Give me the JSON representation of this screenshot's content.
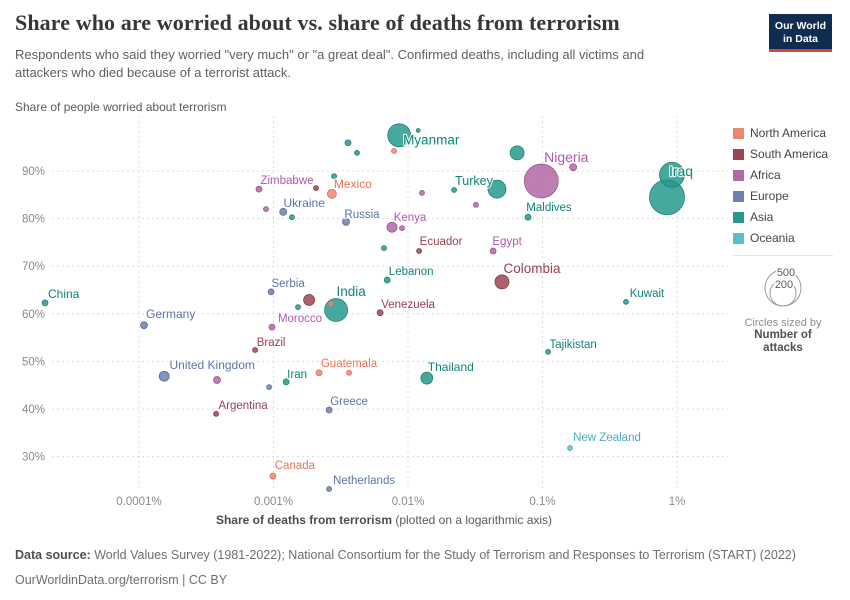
{
  "header": {
    "title": "Share who are worried about vs. share of deaths from terrorism",
    "subtitle_line1": "Respondents who said they worried \"very much\" or \"a great deal\". Confirmed deaths, including all victims and",
    "subtitle_line2": "attackers who died because of a terrorist attack.",
    "logo": {
      "line1": "Our World",
      "line2": "in Data"
    }
  },
  "chart_data": {
    "type": "scatter",
    "x_scale": "log",
    "y_axis_title": "Share of people worried about terrorism",
    "x_axis_title_bold": "Share of deaths from terrorism",
    "x_axis_title_note": " (plotted on a logarithmic axis)",
    "y_ticks": [
      {
        "label": "90%",
        "value": 90
      },
      {
        "label": "80%",
        "value": 80
      },
      {
        "label": "70%",
        "value": 70
      },
      {
        "label": "60%",
        "value": 60
      },
      {
        "label": "50%",
        "value": 50
      },
      {
        "label": "40%",
        "value": 40
      },
      {
        "label": "30%",
        "value": 30
      }
    ],
    "x_ticks": [
      {
        "label": "0.0001%",
        "value": 0.0001
      },
      {
        "label": "0.001%",
        "value": 0.001
      },
      {
        "label": "0.01%",
        "value": 0.01
      },
      {
        "label": "0.1%",
        "value": 0.1
      },
      {
        "label": "1%",
        "value": 1
      }
    ],
    "points": [
      {
        "label": "China",
        "continent": "Asia",
        "worried": 62.3,
        "deaths": 2e-05,
        "r": 3,
        "lx": 3,
        "ly": -5,
        "anchor": "start",
        "fs": 12
      },
      {
        "label": "Germany",
        "continent": "Europe",
        "worried": 57.6,
        "deaths": 0.000109,
        "r": 3.5,
        "lx": 2,
        "ly": -7,
        "anchor": "start",
        "fs": 12
      },
      {
        "label": "United Kingdom",
        "continent": "Europe",
        "worried": 46.9,
        "deaths": 0.000154,
        "r": 5,
        "lx": 48,
        "ly": -7,
        "anchor": "middle",
        "fs": 12
      },
      {
        "label": "Zimbabwe",
        "continent": "Africa",
        "worried": 86.2,
        "deaths": 0.00078,
        "r": 3,
        "lx": 28,
        "ly": -5,
        "anchor": "middle",
        "fs": 11.5
      },
      {
        "label": "Ukraine",
        "continent": "Europe",
        "worried": 81.4,
        "deaths": 0.00118,
        "r": 3.5,
        "lx": 21,
        "ly": -5,
        "anchor": "middle",
        "fs": 12
      },
      {
        "label": "Mexico",
        "continent": "North America",
        "worried": 85.2,
        "deaths": 0.00272,
        "r": 4.5,
        "lx": 21,
        "ly": -6,
        "anchor": "middle",
        "fs": 12
      },
      {
        "label": "Russia",
        "continent": "Europe",
        "worried": 79.3,
        "deaths": 0.00346,
        "r": 3.5,
        "lx": 16,
        "ly": -4,
        "anchor": "middle",
        "fs": 11.5
      },
      {
        "label": "Kenya",
        "continent": "Africa",
        "worried": 78.2,
        "deaths": 0.0076,
        "r": 5,
        "lx": 18,
        "ly": -6,
        "anchor": "middle",
        "fs": 11.5
      },
      {
        "label": "Myanmar",
        "continent": "Asia",
        "worried": 97.5,
        "deaths": 0.0086,
        "r": 11.5,
        "lx": 32,
        "ly": 9,
        "anchor": "middle",
        "fs": 13.5
      },
      {
        "label": "Turkey",
        "continent": "Asia",
        "worried": 86.2,
        "deaths": 0.0459,
        "r": 9,
        "lx": -23,
        "ly": -4,
        "anchor": "middle",
        "fs": 12.5
      },
      {
        "label": "Nigeria",
        "continent": "Africa",
        "worried": 87.9,
        "deaths": 0.098,
        "r": 17,
        "lx": 25,
        "ly": -19,
        "anchor": "middle",
        "fs": 14
      },
      {
        "label": "Maldives",
        "continent": "Asia",
        "worried": 80.3,
        "deaths": 0.078,
        "r": 3,
        "lx": 21,
        "ly": -6,
        "anchor": "middle",
        "fs": 11.5
      },
      {
        "label": "Iraq",
        "continent": "Asia",
        "worried": 84.5,
        "deaths": 0.843,
        "r": 17.5,
        "lx": 14,
        "ly": -21,
        "anchor": "middle",
        "fs": 14
      },
      {
        "label": "Egypt",
        "continent": "Africa",
        "worried": 73.2,
        "deaths": 0.0429,
        "r": 3,
        "lx": 14,
        "ly": -6,
        "anchor": "middle",
        "fs": 11.5
      },
      {
        "label": "Ecuador",
        "continent": "South America",
        "worried": 73.2,
        "deaths": 0.0121,
        "r": 2.5,
        "lx": 22,
        "ly": -6,
        "anchor": "middle",
        "fs": 11.5
      },
      {
        "label": "Lebanon",
        "continent": "Asia",
        "worried": 67.1,
        "deaths": 0.007,
        "r": 3,
        "lx": 24,
        "ly": -5,
        "anchor": "middle",
        "fs": 11.5
      },
      {
        "label": "Colombia",
        "continent": "South America",
        "worried": 66.7,
        "deaths": 0.05,
        "r": 7,
        "lx": 30,
        "ly": -9,
        "anchor": "middle",
        "fs": 13.5
      },
      {
        "label": "India",
        "continent": "Asia",
        "worried": 60.8,
        "deaths": 0.00292,
        "r": 11.5,
        "lx": 15,
        "ly": -14,
        "anchor": "middle",
        "fs": 13.5
      },
      {
        "label": "Venezuela",
        "continent": "South America",
        "worried": 60.2,
        "deaths": 0.0062,
        "r": 3,
        "lx": 28,
        "ly": -5,
        "anchor": "middle",
        "fs": 11.5
      },
      {
        "label": "Serbia",
        "continent": "Europe",
        "worried": 64.6,
        "deaths": 0.00096,
        "r": 3,
        "lx": 17,
        "ly": -5,
        "anchor": "middle",
        "fs": 11.5
      },
      {
        "label": "Morocco",
        "continent": "Africa",
        "worried": 57.2,
        "deaths": 0.000975,
        "r": 3,
        "lx": 28,
        "ly": -5,
        "anchor": "middle",
        "fs": 11.5
      },
      {
        "label": "Kuwait",
        "continent": "Asia",
        "worried": 62.5,
        "deaths": 0.418,
        "r": 2.5,
        "lx": 21,
        "ly": -5,
        "anchor": "middle",
        "fs": 11.5
      },
      {
        "label": "Tajikistan",
        "continent": "Asia",
        "worried": 52,
        "deaths": 0.11,
        "r": 2.5,
        "lx": 25,
        "ly": -4,
        "anchor": "middle",
        "fs": 11.5
      },
      {
        "label": "Brazil",
        "continent": "South America",
        "worried": 52.4,
        "deaths": 0.00073,
        "r": 2.5,
        "lx": 16,
        "ly": -4,
        "anchor": "middle",
        "fs": 11.5
      },
      {
        "label": "Guatemala",
        "continent": "North America",
        "worried": 47.6,
        "deaths": 0.00364,
        "r": 2.5,
        "lx": 0,
        "ly": -6,
        "anchor": "middle",
        "fs": 11.5
      },
      {
        "label": "Iran",
        "continent": "Asia",
        "worried": 45.7,
        "deaths": 0.00124,
        "r": 3,
        "lx": 11,
        "ly": -4,
        "anchor": "middle",
        "fs": 11.5
      },
      {
        "label": "Thailand",
        "continent": "Asia",
        "worried": 46.5,
        "deaths": 0.0138,
        "r": 6,
        "lx": 24,
        "ly": -7,
        "anchor": "middle",
        "fs": 12
      },
      {
        "label": "Argentina",
        "continent": "South America",
        "worried": 39,
        "deaths": 0.000374,
        "r": 2.5,
        "lx": 27,
        "ly": -5,
        "anchor": "middle",
        "fs": 11.5
      },
      {
        "label": "Greece",
        "continent": "Europe",
        "worried": 39.8,
        "deaths": 0.00259,
        "r": 3,
        "lx": 20,
        "ly": -5,
        "anchor": "middle",
        "fs": 11.5
      },
      {
        "label": "New Zealand",
        "continent": "Oceania",
        "worried": 31.8,
        "deaths": 0.16,
        "r": 2.5,
        "lx": 37,
        "ly": -7,
        "anchor": "middle",
        "fs": 11.5
      },
      {
        "label": "Canada",
        "continent": "North America",
        "worried": 25.9,
        "deaths": 0.00099,
        "r": 3,
        "lx": 22,
        "ly": -7,
        "anchor": "middle",
        "fs": 11.5
      },
      {
        "label": "Netherlands",
        "continent": "Europe",
        "worried": 23.2,
        "deaths": 0.00259,
        "r": 2.5,
        "lx": 35,
        "ly": -5,
        "anchor": "middle",
        "fs": 11.5
      },
      {
        "label": null,
        "continent": "South America",
        "worried": 86.4,
        "deaths": 0.00207,
        "r": 2.5
      },
      {
        "label": null,
        "continent": "Africa",
        "worried": 82,
        "deaths": 0.00088,
        "r": 2.5
      },
      {
        "label": null,
        "continent": "Asia",
        "worried": 80.3,
        "deaths": 0.00137,
        "r": 2.5
      },
      {
        "label": null,
        "continent": "Asia",
        "worried": 88.9,
        "deaths": 0.00282,
        "r": 2.5
      },
      {
        "label": null,
        "continent": "Asia",
        "worried": 95.9,
        "deaths": 0.00358,
        "r": 3
      },
      {
        "label": null,
        "continent": "Asia",
        "worried": 93.8,
        "deaths": 0.00418,
        "r": 2.5
      },
      {
        "label": null,
        "continent": "North America",
        "worried": 94.2,
        "deaths": 0.00787,
        "r": 2.5
      },
      {
        "label": null,
        "continent": "Asia",
        "worried": 98.5,
        "deaths": 0.0119,
        "r": 2
      },
      {
        "label": null,
        "continent": "Asia",
        "worried": 93.8,
        "deaths": 0.0647,
        "r": 7
      },
      {
        "label": null,
        "continent": "Africa",
        "worried": 90.8,
        "deaths": 0.169,
        "r": 3.5
      },
      {
        "label": null,
        "continent": "Africa",
        "worried": 85.4,
        "deaths": 0.0127,
        "r": 2.5
      },
      {
        "label": null,
        "continent": "Africa",
        "worried": 82.9,
        "deaths": 0.032,
        "r": 2.5
      },
      {
        "label": null,
        "continent": "Asia",
        "worried": 73.8,
        "deaths": 0.00663,
        "r": 2.5
      },
      {
        "label": null,
        "continent": "Africa",
        "worried": 78,
        "deaths": 0.00902,
        "r": 2.5
      },
      {
        "label": null,
        "continent": "Asia",
        "worried": 86,
        "deaths": 0.022,
        "r": 2.5
      },
      {
        "label": null,
        "continent": "Africa",
        "worried": 46.1,
        "deaths": 0.00038,
        "r": 3.5
      },
      {
        "label": null,
        "continent": "Europe",
        "worried": 44.6,
        "deaths": 0.000927,
        "r": 2.5
      },
      {
        "label": null,
        "continent": "Asia",
        "worried": 89.2,
        "deaths": 0.918,
        "r": 12.5
      },
      {
        "label": null,
        "continent": "North America",
        "worried": 47.6,
        "deaths": 0.00218,
        "r": 3
      },
      {
        "label": null,
        "continent": "South America",
        "worried": 62.9,
        "deaths": 0.00184,
        "r": 5.5
      },
      {
        "label": null,
        "continent": "Asia",
        "worried": 61.4,
        "deaths": 0.00152,
        "r": 2.5
      },
      {
        "label": null,
        "continent": "North America",
        "worried": 62.1,
        "deaths": 0.00268,
        "r": 2.5
      }
    ]
  },
  "legend": {
    "continents": [
      {
        "name": "North America",
        "fill": "#ED8772",
        "stroke": "#D96A55",
        "label_color": "#ED7052"
      },
      {
        "name": "South America",
        "fill": "#9D4556",
        "stroke": "#7E3443",
        "label_color": "#9A3E50"
      },
      {
        "name": "Africa",
        "fill": "#B268A4",
        "stroke": "#96518C",
        "label_color": "#AF58AC"
      },
      {
        "name": "Europe",
        "fill": "#6D80AF",
        "stroke": "#57688F",
        "label_color": "#5E73A9"
      },
      {
        "name": "Asia",
        "fill": "#27998C",
        "stroke": "#1B7F74",
        "label_color": "#0F8576"
      },
      {
        "name": "Oceania",
        "fill": "#5BBFCB",
        "stroke": "#47A5B0",
        "label_color": "#45AEC4"
      }
    ],
    "size": {
      "big_label": "500",
      "small_label": "200",
      "caption": "Circles sized by",
      "caption_bold1": "Number of",
      "caption_bold2": "attacks"
    }
  },
  "footer": {
    "source_label": "Data source:",
    "source_text": " World Values Survey (1981-2022); National Consortium for the Study of Terrorism and Responses to Terrorism (START) (2022)",
    "link_line": "OurWorldinData.org/terrorism | CC BY"
  }
}
